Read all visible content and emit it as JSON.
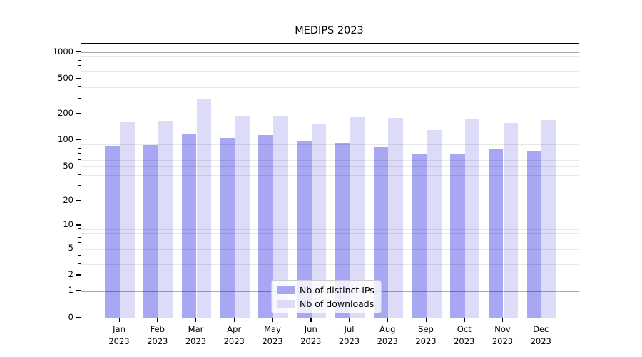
{
  "chart_data": {
    "type": "bar",
    "title": "MEDIPS 2023",
    "categories": [
      "Jan 2023",
      "Feb 2023",
      "Mar 2023",
      "Apr 2023",
      "May 2023",
      "Jun 2023",
      "Jul 2023",
      "Aug 2023",
      "Sep 2023",
      "Oct 2023",
      "Nov 2023",
      "Dec 2023"
    ],
    "series": [
      {
        "name": "Nb of distinct IPs",
        "color": "#a7a7f4",
        "values": [
          85,
          88,
          120,
          106,
          115,
          100,
          94,
          83,
          70,
          70,
          81,
          76
        ]
      },
      {
        "name": "Nb of downloads",
        "color": "#dcdcf9",
        "values": [
          160,
          168,
          300,
          186,
          192,
          151,
          185,
          179,
          130,
          177,
          157,
          172
        ]
      }
    ],
    "xlabel": "",
    "ylabel": "",
    "yscale": "log1p",
    "yticks": [
      0,
      1,
      2,
      5,
      10,
      20,
      50,
      100,
      200,
      500,
      1000
    ],
    "major_grid_values": [
      1,
      10,
      100,
      1000
    ],
    "ylim": [
      0,
      1250
    ],
    "grid": true,
    "legend_position": "lower center",
    "colors": {
      "frame": "#000000",
      "major_grid": "#aeaeae",
      "minor_grid": "#e8e8e8",
      "background": "#ffffff"
    }
  }
}
